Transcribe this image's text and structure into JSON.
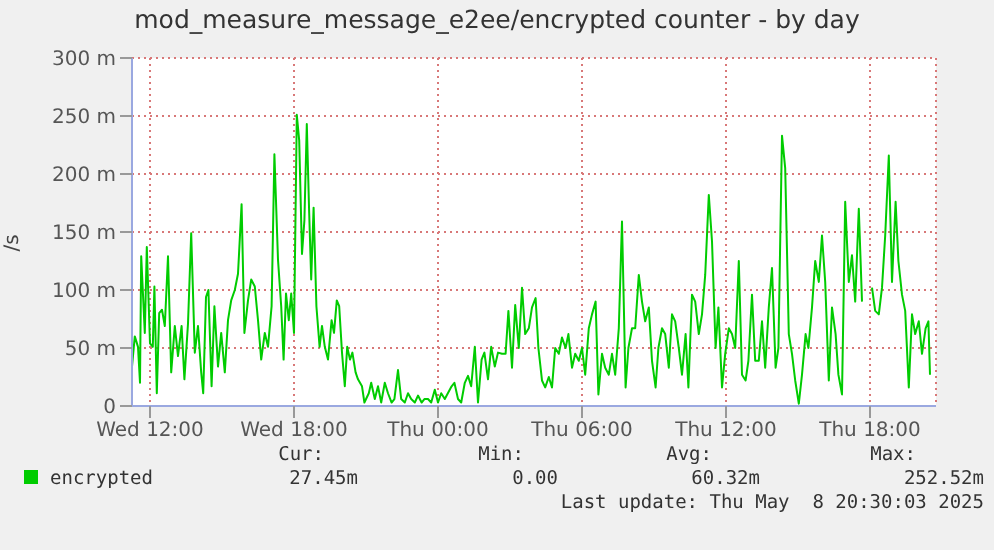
{
  "chart_data": {
    "type": "line",
    "title": "mod_measure_message_e2ee/encrypted counter - by day",
    "ylabel": "/s",
    "xlim": [
      "2025-05-07T11:15",
      "2025-05-08T20:45"
    ],
    "xticks": [
      {
        "value": "2025-05-07T12:00",
        "label": "Wed 12:00"
      },
      {
        "value": "2025-05-07T18:00",
        "label": "Wed 18:00"
      },
      {
        "value": "2025-05-08T00:00",
        "label": "Thu 00:00"
      },
      {
        "value": "2025-05-08T06:00",
        "label": "Thu 06:00"
      },
      {
        "value": "2025-05-08T12:00",
        "label": "Thu 12:00"
      },
      {
        "value": "2025-05-08T18:00",
        "label": "Thu 18:00"
      }
    ],
    "ylim": [
      0,
      300
    ],
    "yticks": [
      0,
      {
        "value": 50,
        "label": "50 m"
      },
      {
        "value": 100,
        "label": "100 m"
      },
      {
        "value": 150,
        "label": "150 m"
      },
      {
        "value": 200,
        "label": "200 m"
      },
      {
        "value": 250,
        "label": "250 m"
      },
      {
        "value": 300,
        "label": "300 m"
      }
    ],
    "grid": true,
    "legend": "bottom",
    "marker": "none",
    "line_style": "solid",
    "annotations": [
      "Cur:",
      "Min:",
      "Avg:",
      "Max:",
      "27.45m",
      "0.00",
      "60.32m",
      "252.52m",
      "Last update: Thu May  8 20:30:03 2025"
    ],
    "x": [
      "2025-05-07T11:15",
      "2025-05-07T11:22",
      "2025-05-07T11:30",
      "2025-05-07T11:35",
      "2025-05-07T11:38",
      "2025-05-07T11:47",
      "2025-05-07T11:52",
      "2025-05-07T12:00",
      "2025-05-07T12:07",
      "2025-05-07T12:11",
      "2025-05-07T12:17",
      "2025-05-07T12:23",
      "2025-05-07T12:30",
      "2025-05-07T12:37",
      "2025-05-07T12:45",
      "2025-05-07T12:53",
      "2025-05-07T13:02",
      "2025-05-07T13:10",
      "2025-05-07T13:19",
      "2025-05-07T13:26",
      "2025-05-07T13:35",
      "2025-05-07T13:43",
      "2025-05-07T13:52",
      "2025-05-07T14:00",
      "2025-05-07T14:08",
      "2025-05-07T14:13",
      "2025-05-07T14:20",
      "2025-05-07T14:26",
      "2025-05-07T14:34",
      "2025-05-07T14:41",
      "2025-05-07T14:50",
      "2025-05-07T14:58",
      "2025-05-07T15:07",
      "2025-05-07T15:15",
      "2025-05-07T15:23",
      "2025-05-07T15:32",
      "2025-05-07T15:40",
      "2025-05-07T15:49",
      "2025-05-07T15:56",
      "2025-05-07T16:05",
      "2025-05-07T16:13",
      "2025-05-07T16:22",
      "2025-05-07T16:30",
      "2025-05-07T16:38",
      "2025-05-07T16:47",
      "2025-05-07T16:55",
      "2025-05-07T17:04",
      "2025-05-07T17:11",
      "2025-05-07T17:20",
      "2025-05-07T17:28",
      "2025-05-07T17:34",
      "2025-05-07T17:40",
      "2025-05-07T17:47",
      "2025-05-07T17:53",
      "2025-05-07T18:00",
      "2025-05-07T18:07",
      "2025-05-07T18:13",
      "2025-05-07T18:20",
      "2025-05-07T18:26",
      "2025-05-07T18:32",
      "2025-05-07T18:38",
      "2025-05-07T18:43",
      "2025-05-07T18:49",
      "2025-05-07T18:56",
      "2025-05-07T19:04",
      "2025-05-07T19:10",
      "2025-05-07T19:17",
      "2025-05-07T19:25",
      "2025-05-07T19:34",
      "2025-05-07T19:40",
      "2025-05-07T19:47",
      "2025-05-07T19:53",
      "2025-05-07T20:00",
      "2025-05-07T20:07",
      "2025-05-07T20:13",
      "2025-05-07T20:20",
      "2025-05-07T20:26",
      "2025-05-07T20:34",
      "2025-05-07T20:40",
      "2025-05-07T20:50",
      "2025-05-07T20:56",
      "2025-05-07T21:07",
      "2025-05-07T21:13",
      "2025-05-07T21:22",
      "2025-05-07T21:30",
      "2025-05-07T21:38",
      "2025-05-07T21:47",
      "2025-05-07T21:55",
      "2025-05-07T22:04",
      "2025-05-07T22:11",
      "2025-05-07T22:20",
      "2025-05-07T22:28",
      "2025-05-07T22:37",
      "2025-05-07T22:45",
      "2025-05-07T22:53",
      "2025-05-07T23:02",
      "2025-05-07T23:10",
      "2025-05-07T23:19",
      "2025-05-07T23:26",
      "2025-05-07T23:35",
      "2025-05-07T23:43",
      "2025-05-07T23:52",
      "2025-05-08T00:00",
      "2025-05-08T00:08",
      "2025-05-08T00:17",
      "2025-05-08T00:34",
      "2025-05-08T00:41",
      "2025-05-08T00:50",
      "2025-05-08T00:58",
      "2025-05-08T01:07",
      "2025-05-08T01:15",
      "2025-05-08T01:23",
      "2025-05-08T01:32",
      "2025-05-08T01:40",
      "2025-05-08T01:49",
      "2025-05-08T01:56",
      "2025-05-08T02:05",
      "2025-05-08T02:13",
      "2025-05-08T02:22",
      "2025-05-08T02:30",
      "2025-05-08T02:40",
      "2025-05-08T02:49",
      "2025-05-08T02:56",
      "2025-05-08T03:05",
      "2025-05-08T03:13",
      "2025-05-08T03:22",
      "2025-05-08T03:30",
      "2025-05-08T03:38",
      "2025-05-08T03:47",
      "2025-05-08T03:55",
      "2025-05-08T04:04",
      "2025-05-08T04:11",
      "2025-05-08T04:20",
      "2025-05-08T04:28",
      "2025-05-08T04:37",
      "2025-05-08T04:45",
      "2025-05-08T04:53",
      "2025-05-08T05:02",
      "2025-05-08T05:10",
      "2025-05-08T05:19",
      "2025-05-08T05:26",
      "2025-05-08T05:35",
      "2025-05-08T05:43",
      "2025-05-08T05:52",
      "2025-05-08T06:00",
      "2025-05-08T06:08",
      "2025-05-08T06:17",
      "2025-05-08T06:25",
      "2025-05-08T06:34",
      "2025-05-08T06:41",
      "2025-05-08T06:50",
      "2025-05-08T06:58",
      "2025-05-08T07:07",
      "2025-05-08T07:15",
      "2025-05-08T07:23",
      "2025-05-08T07:32",
      "2025-05-08T07:40",
      "2025-05-08T07:49",
      "2025-05-08T07:56",
      "2025-05-08T08:05",
      "2025-05-08T08:13",
      "2025-05-08T08:22",
      "2025-05-08T08:30",
      "2025-05-08T08:38",
      "2025-05-08T08:47",
      "2025-05-08T08:55",
      "2025-05-08T09:04",
      "2025-05-08T09:11",
      "2025-05-08T09:20",
      "2025-05-08T09:28",
      "2025-05-08T09:37",
      "2025-05-08T09:45",
      "2025-05-08T09:53",
      "2025-05-08T10:02",
      "2025-05-08T10:10",
      "2025-05-08T10:19",
      "2025-05-08T10:26",
      "2025-05-08T10:35",
      "2025-05-08T10:43",
      "2025-05-08T10:52",
      "2025-05-08T11:00",
      "2025-05-08T11:08",
      "2025-05-08T11:17",
      "2025-05-08T11:25",
      "2025-05-08T11:34",
      "2025-05-08T11:41",
      "2025-05-08T11:50",
      "2025-05-08T11:58",
      "2025-05-08T12:07",
      "2025-05-08T12:15",
      "2025-05-08T12:23",
      "2025-05-08T12:32",
      "2025-05-08T12:40",
      "2025-05-08T12:49",
      "2025-05-08T12:56",
      "2025-05-08T13:05",
      "2025-05-08T13:13",
      "2025-05-08T13:22",
      "2025-05-08T13:30",
      "2025-05-08T13:38",
      "2025-05-08T13:47",
      "2025-05-08T13:55",
      "2025-05-08T14:04",
      "2025-05-08T14:11",
      "2025-05-08T14:20",
      "2025-05-08T14:28",
      "2025-05-08T14:37",
      "2025-05-08T14:45",
      "2025-05-08T14:53",
      "2025-05-08T15:02",
      "2025-05-08T15:10",
      "2025-05-08T15:19",
      "2025-05-08T15:26",
      "2025-05-08T15:35",
      "2025-05-08T15:43",
      "2025-05-08T15:52",
      "2025-05-08T16:00",
      "2025-05-08T16:08",
      "2025-05-08T16:17",
      "2025-05-08T16:25",
      "2025-05-08T16:34",
      "2025-05-08T16:41",
      "2025-05-08T16:50",
      "2025-05-08T16:58",
      "2025-05-08T17:07",
      "2025-05-08T17:15",
      "2025-05-08T17:23",
      "2025-05-08T17:32",
      "2025-05-08T17:40",
      "2025-05-08T17:49",
      "2025-05-08T18:05",
      "2025-05-08T18:13",
      "2025-05-08T18:22",
      "2025-05-08T18:30",
      "2025-05-08T18:38",
      "2025-05-08T18:47",
      "2025-05-08T18:55",
      "2025-05-08T19:04",
      "2025-05-08T19:11",
      "2025-05-08T19:20",
      "2025-05-08T19:28",
      "2025-05-08T19:37",
      "2025-05-08T19:45",
      "2025-05-08T19:53",
      "2025-05-08T20:02",
      "2025-05-08T20:10",
      "2025-05-08T20:19",
      "2025-05-08T20:26",
      "2025-05-08T20:30"
    ],
    "series": [
      {
        "name": "encrypted",
        "color": "#00cc00",
        "values": [
          34,
          60,
          51,
          20,
          129,
          63,
          137,
          54,
          51,
          103,
          11,
          80,
          83,
          69,
          129,
          29,
          69,
          43,
          69,
          23,
          71,
          149,
          46,
          69,
          29,
          11,
          94,
          100,
          17,
          86,
          34,
          63,
          29,
          74,
          91,
          100,
          114,
          174,
          63,
          91,
          109,
          103,
          74,
          40,
          63,
          51,
          86,
          217,
          126,
          86,
          40,
          97,
          74,
          97,
          63,
          251,
          229,
          131,
          160,
          243,
          166,
          109,
          171,
          86,
          51,
          69,
          51,
          40,
          74,
          63,
          91,
          86,
          46,
          17,
          51,
          40,
          46,
          29,
          23,
          17,
          3,
          11,
          20,
          6,
          17,
          3,
          20,
          11,
          3,
          6,
          31,
          6,
          3,
          11,
          6,
          3,
          9,
          3,
          6,
          6,
          3,
          14,
          3,
          11,
          6,
          17,
          20,
          6,
          3,
          20,
          26,
          17,
          51,
          3,
          40,
          46,
          23,
          51,
          34,
          46,
          45,
          45,
          82,
          33,
          87,
          50,
          102,
          62,
          67,
          85,
          93,
          50,
          22,
          16,
          25,
          16,
          50,
          45,
          59,
          50,
          62,
          33,
          45,
          39,
          50,
          27,
          67,
          79,
          90,
          10,
          45,
          33,
          27,
          45,
          27,
          67,
          159,
          16,
          50,
          67,
          67,
          113,
          90,
          73,
          85,
          39,
          16,
          50,
          67,
          62,
          33,
          79,
          73,
          50,
          27,
          62,
          16,
          96,
          90,
          62,
          79,
          113,
          182,
          142,
          50,
          85,
          16,
          45,
          67,
          62,
          50,
          125,
          27,
          22,
          39,
          96,
          39,
          39,
          73,
          33,
          85,
          119,
          33,
          50,
          233,
          205,
          62,
          45,
          22,
          2,
          27,
          62,
          50,
          85,
          125,
          107,
          147,
          107,
          22,
          85,
          62,
          27,
          10,
          176,
          107,
          130,
          90,
          170,
          90,
          null,
          102,
          82,
          79,
          102,
          147,
          216,
          107,
          176,
          125,
          96,
          82,
          16,
          79,
          62,
          73,
          45,
          67,
          73,
          27
        ]
      }
    ]
  }
}
